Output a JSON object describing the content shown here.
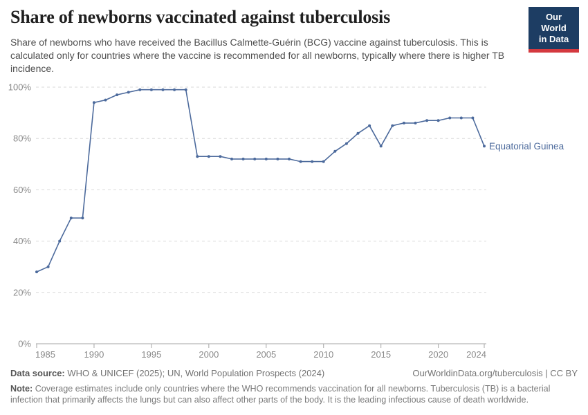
{
  "header": {
    "title": "Share of newborns vaccinated against tuberculosis",
    "subtitle": "Share of newborns who have received the Bacillus Calmette-Guérin (BCG) vaccine against tuberculosis. This is calculated only for countries where the vaccine is recommended for all newborns, typically where there is higher TB incidence.",
    "logo": {
      "line1": "Our World",
      "line2": "in Data",
      "bg_color": "#1d3d63",
      "stripe_color": "#d4393f"
    }
  },
  "chart_data": {
    "type": "line",
    "title": "Share of newborns vaccinated against tuberculosis",
    "xlabel": "",
    "ylabel": "",
    "xlim": [
      1985,
      2024
    ],
    "ylim": [
      0,
      100
    ],
    "grid": "horizontal-dashed",
    "legend_position": "label-at-line-end",
    "x_ticks": [
      1985,
      1990,
      1995,
      2000,
      2005,
      2010,
      2015,
      2020,
      2024
    ],
    "y_ticks": [
      {
        "value": 0,
        "label": "0%"
      },
      {
        "value": 20,
        "label": "20%"
      },
      {
        "value": 40,
        "label": "40%"
      },
      {
        "value": 60,
        "label": "60%"
      },
      {
        "value": 80,
        "label": "80%"
      },
      {
        "value": 100,
        "label": "100%"
      }
    ],
    "series": [
      {
        "name": "Equatorial Guinea",
        "color": "#4C6A9C",
        "x": [
          1985,
          1986,
          1987,
          1988,
          1989,
          1990,
          1991,
          1992,
          1993,
          1994,
          1995,
          1996,
          1997,
          1998,
          1999,
          2000,
          2001,
          2002,
          2003,
          2004,
          2005,
          2006,
          2007,
          2008,
          2009,
          2010,
          2011,
          2012,
          2013,
          2014,
          2015,
          2016,
          2017,
          2018,
          2019,
          2020,
          2021,
          2022,
          2023,
          2024
        ],
        "values": [
          28,
          30,
          40,
          49,
          49,
          94,
          95,
          97,
          98,
          99,
          99,
          99,
          99,
          99,
          73,
          73,
          73,
          72,
          72,
          72,
          72,
          72,
          72,
          71,
          71,
          71,
          75,
          78,
          82,
          85,
          77,
          85,
          86,
          86,
          87,
          87,
          88,
          88,
          88,
          77
        ]
      }
    ],
    "colors": {
      "grid": "#d9d9d9",
      "axis": "#a5a5a5",
      "tick_text": "#8a8a8a"
    }
  },
  "footer": {
    "data_source_label": "Data source:",
    "data_source": "WHO & UNICEF (2025); UN, World Population Prospects (2024)",
    "link": "OurWorldinData.org/tuberculosis | CC BY",
    "note_label": "Note:",
    "note": "Coverage estimates include only countries where the WHO recommends vaccination for all newborns. Tuberculosis (TB) is a bacterial infection that primarily affects the lungs but can also affect other parts of the body. It is the leading infectious cause of death worldwide."
  }
}
